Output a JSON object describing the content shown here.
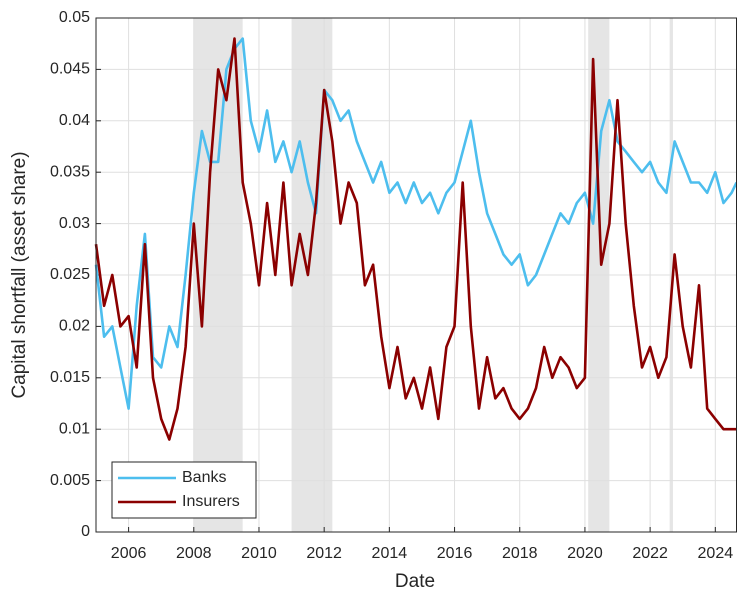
{
  "chart_data": {
    "type": "line",
    "xlabel": "Date",
    "ylabel": "Capital shortfall (asset share)",
    "xlim": [
      2005,
      2024.65
    ],
    "ylim": [
      0,
      0.05
    ],
    "xticks": [
      2006,
      2008,
      2010,
      2012,
      2014,
      2016,
      2018,
      2020,
      2022,
      2024
    ],
    "yticks": [
      0,
      0.005,
      0.01,
      0.015,
      0.02,
      0.025,
      0.03,
      0.035,
      0.04,
      0.045,
      0.05
    ],
    "grid": true,
    "legend": "lower left",
    "shaded_regions": [
      [
        2008,
        2009.5
      ],
      [
        2011,
        2012.25
      ],
      [
        2020.1,
        2020.75
      ],
      [
        2022.6,
        2022.7
      ]
    ],
    "shade_color": "#e5e5e5",
    "x": [
      2005,
      2005.25,
      2005.5,
      2005.75,
      2006,
      2006.25,
      2006.5,
      2006.75,
      2007,
      2007.25,
      2007.5,
      2007.75,
      2008,
      2008.25,
      2008.5,
      2008.75,
      2009,
      2009.25,
      2009.5,
      2009.75,
      2010,
      2010.25,
      2010.5,
      2010.75,
      2011,
      2011.25,
      2011.5,
      2011.75,
      2012,
      2012.25,
      2012.5,
      2012.75,
      2013,
      2013.25,
      2013.5,
      2013.75,
      2014,
      2014.25,
      2014.5,
      2014.75,
      2015,
      2015.25,
      2015.5,
      2015.75,
      2016,
      2016.25,
      2016.5,
      2016.75,
      2017,
      2017.25,
      2017.5,
      2017.75,
      2018,
      2018.25,
      2018.5,
      2018.75,
      2019,
      2019.25,
      2019.5,
      2019.75,
      2020,
      2020.25,
      2020.5,
      2020.75,
      2021,
      2021.25,
      2021.5,
      2021.75,
      2022,
      2022.25,
      2022.5,
      2022.75,
      2023,
      2023.25,
      2023.5,
      2023.75,
      2024,
      2024.25,
      2024.5,
      2024.65
    ],
    "series": [
      {
        "name": "Banks",
        "color": "#4dbeee",
        "values": [
          0.026,
          0.019,
          0.02,
          0.016,
          0.012,
          0.022,
          0.029,
          0.017,
          0.016,
          0.02,
          0.018,
          0.025,
          0.033,
          0.039,
          0.036,
          0.036,
          0.045,
          0.047,
          0.048,
          0.04,
          0.037,
          0.041,
          0.036,
          0.038,
          0.035,
          0.038,
          0.034,
          0.031,
          0.043,
          0.042,
          0.04,
          0.041,
          0.038,
          0.036,
          0.034,
          0.036,
          0.033,
          0.034,
          0.032,
          0.034,
          0.032,
          0.033,
          0.031,
          0.033,
          0.034,
          0.037,
          0.04,
          0.035,
          0.031,
          0.029,
          0.027,
          0.026,
          0.027,
          0.024,
          0.025,
          0.027,
          0.029,
          0.031,
          0.03,
          0.032,
          0.033,
          0.03,
          0.039,
          0.042,
          0.038,
          0.037,
          0.036,
          0.035,
          0.036,
          0.034,
          0.033,
          0.038,
          0.036,
          0.034,
          0.034,
          0.033,
          0.035,
          0.032,
          0.033,
          0.034
        ]
      },
      {
        "name": "Insurers",
        "color": "#8b0000",
        "values": [
          0.028,
          0.022,
          0.025,
          0.02,
          0.021,
          0.016,
          0.028,
          0.015,
          0.011,
          0.009,
          0.012,
          0.018,
          0.03,
          0.02,
          0.035,
          0.045,
          0.042,
          0.048,
          0.034,
          0.03,
          0.024,
          0.032,
          0.025,
          0.034,
          0.024,
          0.029,
          0.025,
          0.032,
          0.043,
          0.038,
          0.03,
          0.034,
          0.032,
          0.024,
          0.026,
          0.019,
          0.014,
          0.018,
          0.013,
          0.015,
          0.012,
          0.016,
          0.011,
          0.018,
          0.02,
          0.034,
          0.02,
          0.012,
          0.017,
          0.013,
          0.014,
          0.012,
          0.011,
          0.012,
          0.014,
          0.018,
          0.015,
          0.017,
          0.016,
          0.014,
          0.015,
          0.046,
          0.026,
          0.03,
          0.042,
          0.03,
          0.022,
          0.016,
          0.018,
          0.015,
          0.017,
          0.027,
          0.02,
          0.016,
          0.024,
          0.012,
          0.011,
          0.01,
          0.01,
          0.01
        ]
      }
    ]
  }
}
